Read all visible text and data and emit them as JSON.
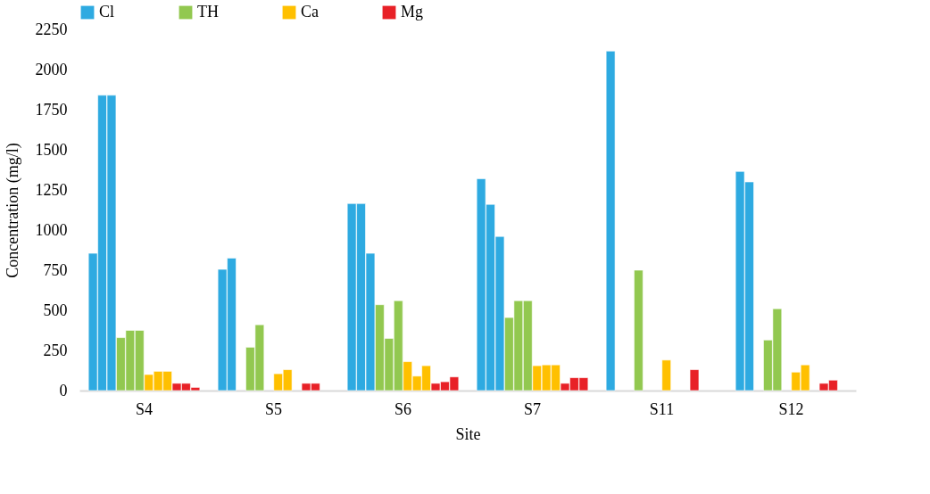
{
  "chart_data": {
    "type": "bar",
    "xlabel": "Site",
    "ylabel": "Concentration (mg/l)",
    "categories": [
      "S4",
      "S5",
      "S6",
      "S7",
      "S11",
      "S12"
    ],
    "ylim": [
      0,
      2250
    ],
    "yticks": [
      0,
      250,
      500,
      750,
      1000,
      1250,
      1500,
      1750,
      2000,
      2250
    ],
    "grid": false,
    "legend": "top",
    "series": [
      {
        "name": "Cl",
        "color": "#2eaae1",
        "values": [
          855,
          755,
          1165,
          1320,
          2115,
          1365
        ]
      },
      {
        "color": "#2eaae1",
        "values": [
          1840,
          825,
          1165,
          1160,
          null,
          1300
        ]
      },
      {
        "color": "#2eaae1",
        "values": [
          1840,
          null,
          855,
          960,
          null,
          null
        ]
      },
      {
        "name": "TH",
        "color": "#92c850",
        "values": [
          330,
          270,
          535,
          455,
          750,
          315
        ]
      },
      {
        "color": "#92c850",
        "values": [
          375,
          410,
          325,
          560,
          null,
          510
        ]
      },
      {
        "color": "#92c850",
        "values": [
          375,
          null,
          560,
          560,
          null,
          null
        ]
      },
      {
        "name": "Ca",
        "color": "#ffc000",
        "values": [
          100,
          105,
          180,
          155,
          190,
          115
        ]
      },
      {
        "color": "#ffc000",
        "values": [
          120,
          130,
          90,
          160,
          null,
          160
        ]
      },
      {
        "color": "#ffc000",
        "values": [
          120,
          null,
          155,
          160,
          null,
          null
        ]
      },
      {
        "name": "Mg",
        "color": "#e82127",
        "values": [
          45,
          45,
          45,
          45,
          130,
          45
        ]
      },
      {
        "color": "#e82127",
        "values": [
          45,
          45,
          55,
          80,
          null,
          65
        ]
      },
      {
        "color": "#e82127",
        "values": [
          20,
          null,
          85,
          80,
          null,
          null
        ]
      }
    ]
  }
}
